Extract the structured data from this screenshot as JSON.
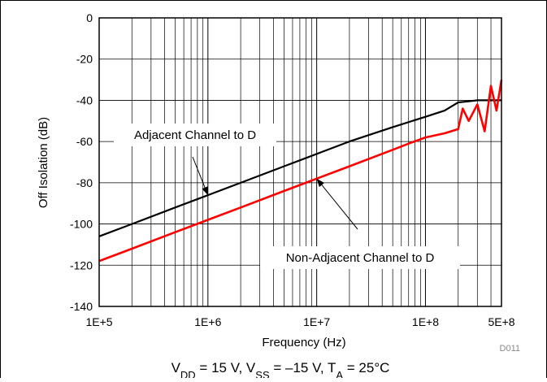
{
  "chart_data": {
    "type": "line",
    "xscale": "log",
    "xlabel": "Frequency (Hz)",
    "ylabel": "Off Isolation (dB)",
    "xlim": [
      100000,
      500000000
    ],
    "ylim": [
      -140,
      0
    ],
    "yticks": [
      0,
      -20,
      -40,
      -60,
      -80,
      -100,
      -120,
      -140
    ],
    "xticks": [
      {
        "value": 100000,
        "label": "1E+5"
      },
      {
        "value": 1000000,
        "label": "1E+6"
      },
      {
        "value": 10000000,
        "label": "1E+7"
      },
      {
        "value": 100000000,
        "label": "1E+8"
      },
      {
        "value": 500000000,
        "label": "5E+8"
      }
    ],
    "grid": true,
    "figure_id": "D011",
    "condition_text": "V<tspan baseline-shift=\"sub\" font-size=\"13\">DD</tspan> = 15 V, V<tspan baseline-shift=\"sub\" font-size=\"13\">SS</tspan> = –15 V, T<tspan baseline-shift=\"sub\" font-size=\"13\">A</tspan> = 25°C",
    "series": [
      {
        "name": "Adjacent Channel to D",
        "color": "#000000",
        "x": [
          100000,
          200000,
          500000,
          1000000,
          2000000,
          5000000,
          10000000,
          20000000,
          50000000,
          100000000,
          150000000,
          200000000,
          250000000,
          300000000,
          400000000,
          500000000
        ],
        "y": [
          -106,
          -100,
          -92,
          -86,
          -80,
          -72,
          -66,
          -60,
          -53,
          -48,
          -45,
          -41,
          -40.5,
          -40,
          -40,
          -40
        ]
      },
      {
        "name": "Non-Adjacent Channel to D",
        "color": "#ff0000",
        "x": [
          100000,
          200000,
          500000,
          1000000,
          2000000,
          5000000,
          10000000,
          20000000,
          50000000,
          70000000,
          100000000,
          150000000,
          200000000,
          220000000,
          250000000,
          300000000,
          350000000,
          400000000,
          450000000,
          500000000
        ],
        "y": [
          -118,
          -112,
          -104,
          -98,
          -92,
          -84,
          -78,
          -72,
          -64,
          -61,
          -58,
          -56,
          -54,
          -44,
          -50,
          -42,
          -55,
          -33,
          -45,
          -30
        ]
      }
    ],
    "annotations": [
      {
        "text": "Adjacent Channel to D",
        "target_x": 1000000,
        "target_y": -86
      },
      {
        "text": "Non-Adjacent Channel to D",
        "target_x": 10000000,
        "target_y": -78
      }
    ]
  }
}
